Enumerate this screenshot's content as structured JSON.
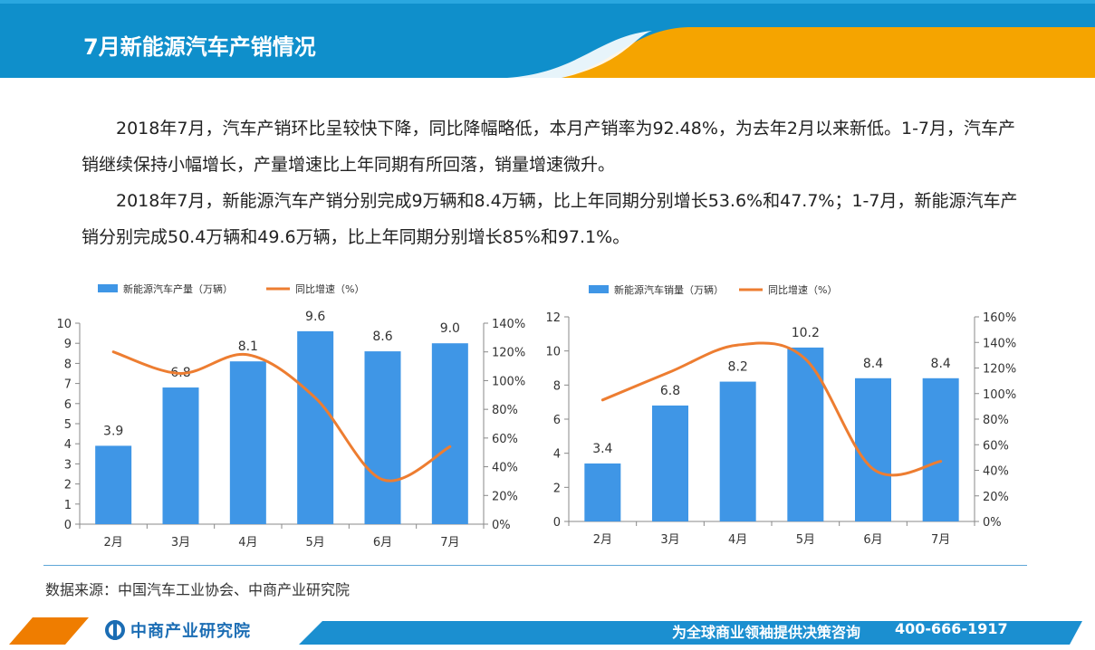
{
  "header": {
    "title": "7月新能源汽车产销情况",
    "colors": {
      "blue": "#0f8fcb",
      "orange": "#f5a400"
    }
  },
  "paragraphs": [
    "2018年7月，汽车产销环比呈较快下降，同比降幅略低，本月产销率为92.48%，为去年2月以来新低。1-7月，汽车产销继续保持小幅增长，产量增速比上年同期有所回落，销量增速微升。",
    "2018年7月，新能源汽车产销分别完成9万辆和8.4万辆，比上年同期分别增长53.6%和47.7%；1-7月，新能源汽车产销分别完成50.4万辆和49.6万辆，比上年同期分别增长85%和97.1%。"
  ],
  "chart_data": [
    {
      "type": "bar",
      "categories": [
        "2月",
        "3月",
        "4月",
        "5月",
        "6月",
        "7月"
      ],
      "series": [
        {
          "name": "新能源汽车产量（万辆）",
          "type": "bar",
          "axis": "left",
          "values": [
            3.9,
            6.8,
            8.1,
            9.6,
            8.6,
            9.0
          ],
          "labels": [
            "3.9",
            "6.8",
            "8.1",
            "9.6",
            "8.6",
            "9.0"
          ],
          "color": "#3f96e6"
        },
        {
          "name": "同比增速（%）",
          "type": "line",
          "axis": "right",
          "values": [
            120,
            105,
            118,
            88,
            31,
            54
          ],
          "color": "#ed7d31"
        }
      ],
      "y_left": {
        "range": [
          0,
          10
        ],
        "ticks": [
          "0",
          "1",
          "2",
          "3",
          "4",
          "5",
          "6",
          "7",
          "8",
          "9",
          "10"
        ]
      },
      "y_right": {
        "range": [
          0,
          140
        ],
        "ticks": [
          "0%",
          "20%",
          "40%",
          "60%",
          "80%",
          "100%",
          "120%",
          "140%"
        ]
      },
      "legend": "top-left",
      "grid": false
    },
    {
      "type": "bar",
      "categories": [
        "2月",
        "3月",
        "4月",
        "5月",
        "6月",
        "7月"
      ],
      "series": [
        {
          "name": "新能源汽车销量（万辆）",
          "type": "bar",
          "axis": "left",
          "values": [
            3.4,
            6.8,
            8.2,
            10.2,
            8.4,
            8.4
          ],
          "labels": [
            "3.4",
            "6.8",
            "8.2",
            "10.2",
            "8.4",
            "8.4"
          ],
          "color": "#3f96e6"
        },
        {
          "name": "同比增速（%）",
          "type": "line",
          "axis": "right",
          "values": [
            95,
            117,
            138,
            127,
            41,
            47
          ],
          "color": "#ed7d31"
        }
      ],
      "y_left": {
        "range": [
          0,
          12
        ],
        "ticks": [
          "0",
          "2",
          "4",
          "6",
          "8",
          "10",
          "12"
        ]
      },
      "y_right": {
        "range": [
          0,
          160
        ],
        "ticks": [
          "0%",
          "20%",
          "40%",
          "60%",
          "80%",
          "100%",
          "120%",
          "140%",
          "160%"
        ]
      },
      "legend": "top-left",
      "grid": false
    }
  ],
  "source": "数据来源：中国汽车工业协会、中商产业研究院",
  "footer": {
    "logo_text": "中商产业研究院",
    "slogan": "为全球商业领袖提供决策咨询",
    "phone": "400-666-1917",
    "colors": {
      "blue": "#1b8fd0",
      "orange": "#ef7d00"
    }
  }
}
